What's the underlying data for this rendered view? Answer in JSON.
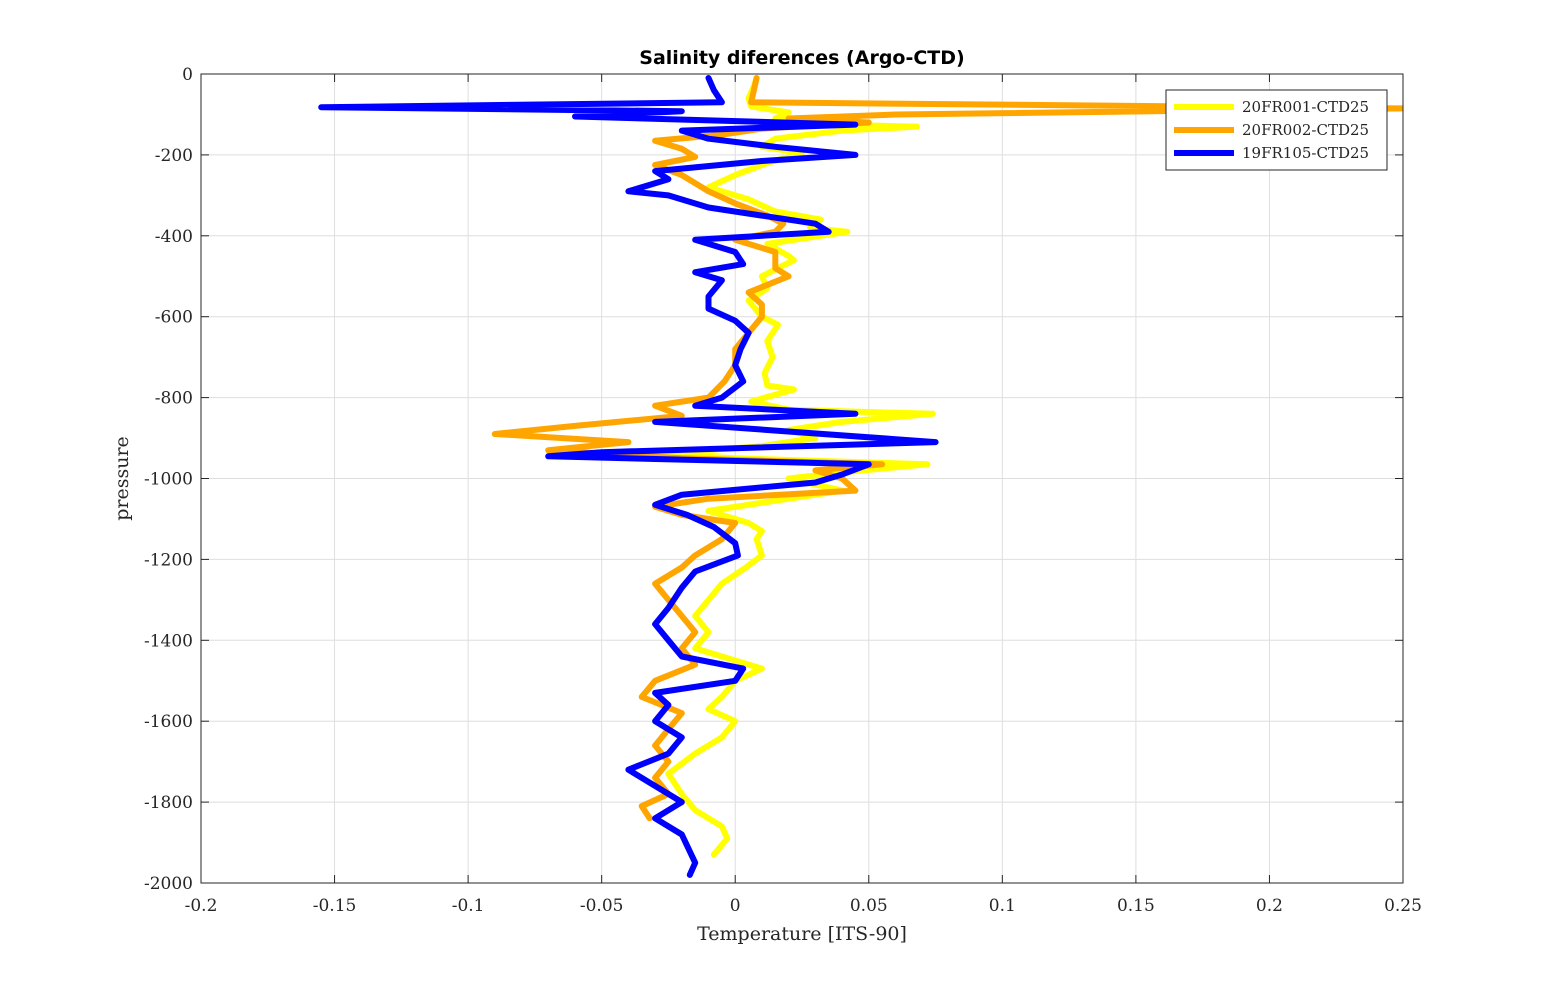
{
  "chart_data": {
    "type": "line",
    "title": "Salinity diferences (Argo-CTD)",
    "xlabel": "Temperature [ITS-90]",
    "ylabel": "pressure",
    "xlim": [
      -0.2,
      0.25
    ],
    "ylim": [
      -2000,
      0
    ],
    "xticks": [
      -0.2,
      -0.15,
      -0.1,
      -0.05,
      0,
      0.05,
      0.1,
      0.15,
      0.2,
      0.25
    ],
    "xtick_labels": [
      "-0.2",
      "-0.15",
      "-0.1",
      "-0.05",
      "0",
      "0.05",
      "0.1",
      "0.15",
      "0.2",
      "0.25"
    ],
    "yticks": [
      0,
      -200,
      -400,
      -600,
      -800,
      -1000,
      -1200,
      -1400,
      -1600,
      -1800,
      -2000
    ],
    "ytick_labels": [
      "0",
      "-200",
      "-400",
      "-600",
      "-800",
      "-1000",
      "-1200",
      "-1400",
      "-1600",
      "-1800",
      "-2000"
    ],
    "grid": true,
    "legend_position": "top-right",
    "series": [
      {
        "name": "20FR001-CTD25",
        "color": "#FFFF00",
        "points": [
          [
            0.008,
            -10
          ],
          [
            0.007,
            -30
          ],
          [
            0.005,
            -60
          ],
          [
            0.006,
            -80
          ],
          [
            0.02,
            -95
          ],
          [
            0.015,
            -110
          ],
          [
            0.035,
            -125
          ],
          [
            0.068,
            -130
          ],
          [
            0.04,
            -140
          ],
          [
            0.015,
            -160
          ],
          [
            0.01,
            -180
          ],
          [
            0.025,
            -195
          ],
          [
            0.012,
            -220
          ],
          [
            0.0,
            -250
          ],
          [
            -0.01,
            -280
          ],
          [
            0.005,
            -310
          ],
          [
            0.015,
            -340
          ],
          [
            0.032,
            -360
          ],
          [
            0.028,
            -380
          ],
          [
            0.042,
            -390
          ],
          [
            0.012,
            -420
          ],
          [
            0.02,
            -450
          ],
          [
            0.022,
            -460
          ],
          [
            0.01,
            -500
          ],
          [
            0.012,
            -530
          ],
          [
            0.005,
            -560
          ],
          [
            0.01,
            -600
          ],
          [
            0.016,
            -620
          ],
          [
            0.012,
            -660
          ],
          [
            0.014,
            -700
          ],
          [
            0.011,
            -740
          ],
          [
            0.012,
            -770
          ],
          [
            0.022,
            -780
          ],
          [
            0.006,
            -810
          ],
          [
            0.02,
            -830
          ],
          [
            0.074,
            -840
          ],
          [
            0.04,
            -860
          ],
          [
            0.02,
            -880
          ],
          [
            0.03,
            -900
          ],
          [
            0.01,
            -920
          ],
          [
            -0.03,
            -940
          ],
          [
            0.0,
            -950
          ],
          [
            0.072,
            -965
          ],
          [
            0.04,
            -985
          ],
          [
            0.02,
            -1000
          ],
          [
            0.04,
            -1030
          ],
          [
            0.01,
            -1060
          ],
          [
            -0.01,
            -1080
          ],
          [
            0.005,
            -1110
          ],
          [
            0.01,
            -1130
          ],
          [
            0.008,
            -1150
          ],
          [
            0.01,
            -1190
          ],
          [
            0.004,
            -1220
          ],
          [
            -0.005,
            -1260
          ],
          [
            -0.01,
            -1300
          ],
          [
            -0.015,
            -1340
          ],
          [
            -0.01,
            -1380
          ],
          [
            -0.015,
            -1420
          ],
          [
            0.01,
            -1470
          ],
          [
            0.0,
            -1500
          ],
          [
            -0.005,
            -1540
          ],
          [
            -0.01,
            -1570
          ],
          [
            0.0,
            -1600
          ],
          [
            -0.005,
            -1640
          ],
          [
            -0.015,
            -1680
          ],
          [
            -0.025,
            -1730
          ],
          [
            -0.02,
            -1780
          ],
          [
            -0.015,
            -1820
          ],
          [
            -0.005,
            -1860
          ],
          [
            -0.003,
            -1890
          ],
          [
            -0.008,
            -1930
          ]
        ]
      },
      {
        "name": "20FR002-CTD25",
        "color": "#FFA500",
        "points": [
          [
            0.008,
            -10
          ],
          [
            0.007,
            -40
          ],
          [
            0.006,
            -70
          ],
          [
            0.25,
            -85
          ],
          [
            0.18,
            -90
          ],
          [
            0.06,
            -100
          ],
          [
            0.02,
            -110
          ],
          [
            0.05,
            -120
          ],
          [
            0.01,
            -135
          ],
          [
            -0.005,
            -150
          ],
          [
            -0.03,
            -165
          ],
          [
            -0.02,
            -185
          ],
          [
            -0.015,
            -205
          ],
          [
            -0.03,
            -225
          ],
          [
            -0.02,
            -250
          ],
          [
            -0.015,
            -270
          ],
          [
            -0.01,
            -290
          ],
          [
            0.0,
            -320
          ],
          [
            0.012,
            -350
          ],
          [
            0.018,
            -370
          ],
          [
            0.015,
            -390
          ],
          [
            0.0,
            -410
          ],
          [
            0.015,
            -440
          ],
          [
            0.015,
            -480
          ],
          [
            0.02,
            -500
          ],
          [
            0.005,
            -540
          ],
          [
            0.01,
            -570
          ],
          [
            0.01,
            -600
          ],
          [
            0.005,
            -640
          ],
          [
            0.0,
            -680
          ],
          [
            0.0,
            -720
          ],
          [
            -0.004,
            -760
          ],
          [
            -0.01,
            -800
          ],
          [
            -0.03,
            -820
          ],
          [
            -0.02,
            -845
          ],
          [
            -0.06,
            -870
          ],
          [
            -0.09,
            -890
          ],
          [
            -0.04,
            -910
          ],
          [
            -0.07,
            -930
          ],
          [
            -0.02,
            -950
          ],
          [
            0.055,
            -965
          ],
          [
            0.03,
            -980
          ],
          [
            0.04,
            -1000
          ],
          [
            0.045,
            -1030
          ],
          [
            -0.01,
            -1050
          ],
          [
            -0.03,
            -1070
          ],
          [
            -0.02,
            -1090
          ],
          [
            0.0,
            -1110
          ],
          [
            -0.005,
            -1150
          ],
          [
            -0.015,
            -1190
          ],
          [
            -0.02,
            -1220
          ],
          [
            -0.03,
            -1260
          ],
          [
            -0.025,
            -1300
          ],
          [
            -0.02,
            -1340
          ],
          [
            -0.015,
            -1380
          ],
          [
            -0.02,
            -1420
          ],
          [
            -0.015,
            -1460
          ],
          [
            -0.03,
            -1500
          ],
          [
            -0.035,
            -1540
          ],
          [
            -0.02,
            -1580
          ],
          [
            -0.025,
            -1620
          ],
          [
            -0.03,
            -1660
          ],
          [
            -0.025,
            -1700
          ],
          [
            -0.03,
            -1740
          ],
          [
            -0.025,
            -1780
          ],
          [
            -0.035,
            -1810
          ],
          [
            -0.032,
            -1840
          ]
        ]
      },
      {
        "name": "19FR105-CTD25",
        "color": "#0000FF",
        "points": [
          [
            -0.01,
            -10
          ],
          [
            -0.008,
            -40
          ],
          [
            -0.005,
            -70
          ],
          [
            -0.155,
            -82
          ],
          [
            -0.02,
            -92
          ],
          [
            -0.06,
            -105
          ],
          [
            0.045,
            -125
          ],
          [
            -0.02,
            -140
          ],
          [
            -0.01,
            -160
          ],
          [
            0.015,
            -180
          ],
          [
            0.045,
            -200
          ],
          [
            0.01,
            -215
          ],
          [
            -0.03,
            -240
          ],
          [
            -0.025,
            -260
          ],
          [
            -0.04,
            -290
          ],
          [
            -0.025,
            -300
          ],
          [
            -0.01,
            -330
          ],
          [
            0.01,
            -350
          ],
          [
            0.03,
            -370
          ],
          [
            0.035,
            -390
          ],
          [
            -0.015,
            -410
          ],
          [
            0.0,
            -440
          ],
          [
            0.003,
            -470
          ],
          [
            -0.015,
            -490
          ],
          [
            -0.005,
            -510
          ],
          [
            -0.01,
            -550
          ],
          [
            -0.01,
            -580
          ],
          [
            0.0,
            -610
          ],
          [
            0.005,
            -640
          ],
          [
            0.002,
            -680
          ],
          [
            0.0,
            -720
          ],
          [
            0.003,
            -760
          ],
          [
            -0.005,
            -800
          ],
          [
            -0.015,
            -820
          ],
          [
            0.045,
            -840
          ],
          [
            -0.03,
            -860
          ],
          [
            0.075,
            -910
          ],
          [
            -0.05,
            -935
          ],
          [
            -0.07,
            -945
          ],
          [
            0.05,
            -965
          ],
          [
            0.04,
            -990
          ],
          [
            0.03,
            -1010
          ],
          [
            -0.02,
            -1040
          ],
          [
            -0.03,
            -1065
          ],
          [
            -0.018,
            -1090
          ],
          [
            -0.008,
            -1120
          ],
          [
            0.0,
            -1160
          ],
          [
            0.001,
            -1190
          ],
          [
            -0.015,
            -1230
          ],
          [
            -0.02,
            -1270
          ],
          [
            -0.025,
            -1320
          ],
          [
            -0.03,
            -1360
          ],
          [
            -0.025,
            -1400
          ],
          [
            -0.02,
            -1440
          ],
          [
            0.003,
            -1470
          ],
          [
            0.0,
            -1500
          ],
          [
            -0.03,
            -1530
          ],
          [
            -0.025,
            -1560
          ],
          [
            -0.03,
            -1600
          ],
          [
            -0.02,
            -1640
          ],
          [
            -0.025,
            -1680
          ],
          [
            -0.04,
            -1720
          ],
          [
            -0.03,
            -1760
          ],
          [
            -0.02,
            -1800
          ],
          [
            -0.03,
            -1840
          ],
          [
            -0.02,
            -1880
          ],
          [
            -0.015,
            -1950
          ],
          [
            -0.017,
            -1980
          ]
        ]
      }
    ]
  }
}
